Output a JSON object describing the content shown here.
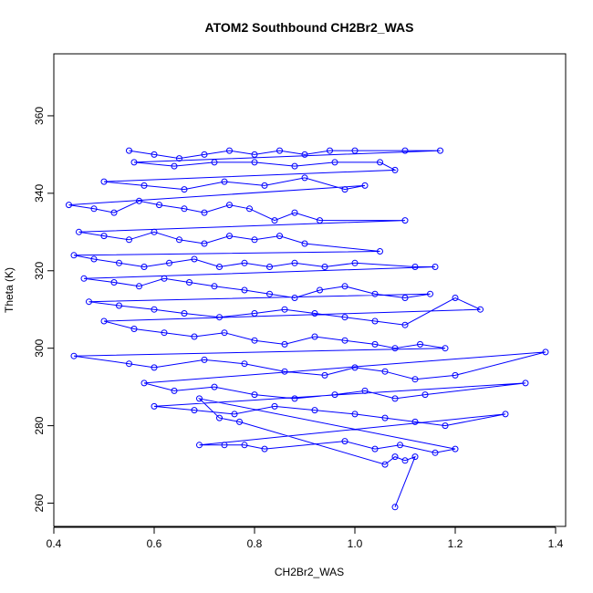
{
  "chart_data": {
    "type": "line",
    "title": "ATOM2 Southbound CH2Br2_WAS",
    "xlabel": "CH2Br2_WAS",
    "ylabel": "Theta (K)",
    "xlim": [
      0.4,
      1.42
    ],
    "ylim": [
      254,
      376
    ],
    "x_ticks": [
      0.4,
      0.6,
      0.8,
      1.0,
      1.2,
      1.4
    ],
    "x_tick_labels": [
      "0.4",
      "0.6",
      "0.8",
      "1.0",
      "1.2",
      "1.4"
    ],
    "y_ticks": [
      260,
      280,
      300,
      320,
      340,
      360
    ],
    "y_tick_labels": [
      "260",
      "280",
      "300",
      "320",
      "340",
      "360"
    ],
    "grid": false,
    "legend": "none",
    "marker": "open-circle",
    "series_color": "#0000ff",
    "series": [
      {
        "x": [
          0.55,
          0.6,
          0.65,
          0.7,
          0.75,
          0.8,
          0.85,
          0.9,
          0.95,
          1.0,
          1.1,
          1.17,
          0.56,
          0.64,
          0.72,
          0.8,
          0.88,
          0.96,
          1.05,
          1.08,
          0.5,
          0.58,
          0.66,
          0.74,
          0.82,
          0.9,
          0.98,
          1.02,
          0.43,
          0.48,
          0.52,
          0.57,
          0.61,
          0.66,
          0.7,
          0.75,
          0.79,
          0.84,
          0.88,
          0.93,
          1.1,
          0.45,
          0.5,
          0.55,
          0.6,
          0.65,
          0.7,
          0.75,
          0.8,
          0.85,
          0.9,
          1.05,
          0.44,
          0.48,
          0.53,
          0.58,
          0.63,
          0.68,
          0.73,
          0.78,
          0.83,
          0.88,
          0.94,
          1.0,
          1.12,
          1.16,
          0.46,
          0.52,
          0.57,
          0.62,
          0.67,
          0.72,
          0.78,
          0.83,
          0.88,
          0.93,
          0.98,
          1.04,
          1.1,
          1.15,
          0.47,
          0.53,
          0.6,
          0.66,
          0.73,
          0.8,
          0.86,
          0.92,
          0.98,
          1.04,
          1.1,
          1.2,
          1.25,
          0.5,
          0.56,
          0.62,
          0.68,
          0.74,
          0.8,
          0.86,
          0.92,
          0.98,
          1.04,
          1.08,
          1.13,
          1.18,
          0.44,
          0.55,
          0.6,
          0.7,
          0.78,
          0.86,
          0.94,
          1.0,
          1.06,
          1.12,
          1.2,
          1.38,
          0.58,
          0.64,
          0.72,
          0.8,
          0.88,
          0.96,
          1.02,
          1.08,
          1.14,
          1.34,
          0.6,
          0.68,
          0.76,
          0.84,
          0.92,
          1.0,
          1.06,
          1.12,
          1.18,
          1.3,
          0.69,
          0.74,
          0.78,
          0.82,
          0.98,
          1.04,
          1.09,
          1.16,
          1.2,
          0.69,
          0.73,
          0.77,
          1.06,
          1.08,
          1.1,
          1.12,
          1.08
        ],
        "y": [
          351,
          350,
          349,
          350,
          351,
          350,
          351,
          350,
          351,
          351,
          351,
          351,
          348,
          347,
          348,
          348,
          347,
          348,
          348,
          346,
          343,
          342,
          341,
          343,
          342,
          344,
          341,
          342,
          337,
          336,
          335,
          338,
          337,
          336,
          335,
          337,
          336,
          333,
          335,
          333,
          333,
          330,
          329,
          328,
          330,
          328,
          327,
          329,
          328,
          329,
          327,
          325,
          324,
          323,
          322,
          321,
          322,
          323,
          321,
          322,
          321,
          322,
          321,
          322,
          321,
          321,
          318,
          317,
          316,
          318,
          317,
          316,
          315,
          314,
          313,
          315,
          316,
          314,
          313,
          314,
          312,
          311,
          310,
          309,
          308,
          309,
          310,
          309,
          308,
          307,
          306,
          313,
          310,
          307,
          305,
          304,
          303,
          304,
          302,
          301,
          303,
          302,
          301,
          300,
          301,
          300,
          298,
          296,
          295,
          297,
          296,
          294,
          293,
          295,
          294,
          292,
          293,
          299,
          291,
          289,
          290,
          288,
          287,
          288,
          289,
          287,
          288,
          291,
          285,
          284,
          283,
          285,
          284,
          283,
          282,
          281,
          280,
          283,
          275,
          275,
          275,
          274,
          276,
          274,
          275,
          273,
          274,
          287,
          282,
          281,
          270,
          272,
          271,
          272,
          259
        ]
      }
    ]
  }
}
